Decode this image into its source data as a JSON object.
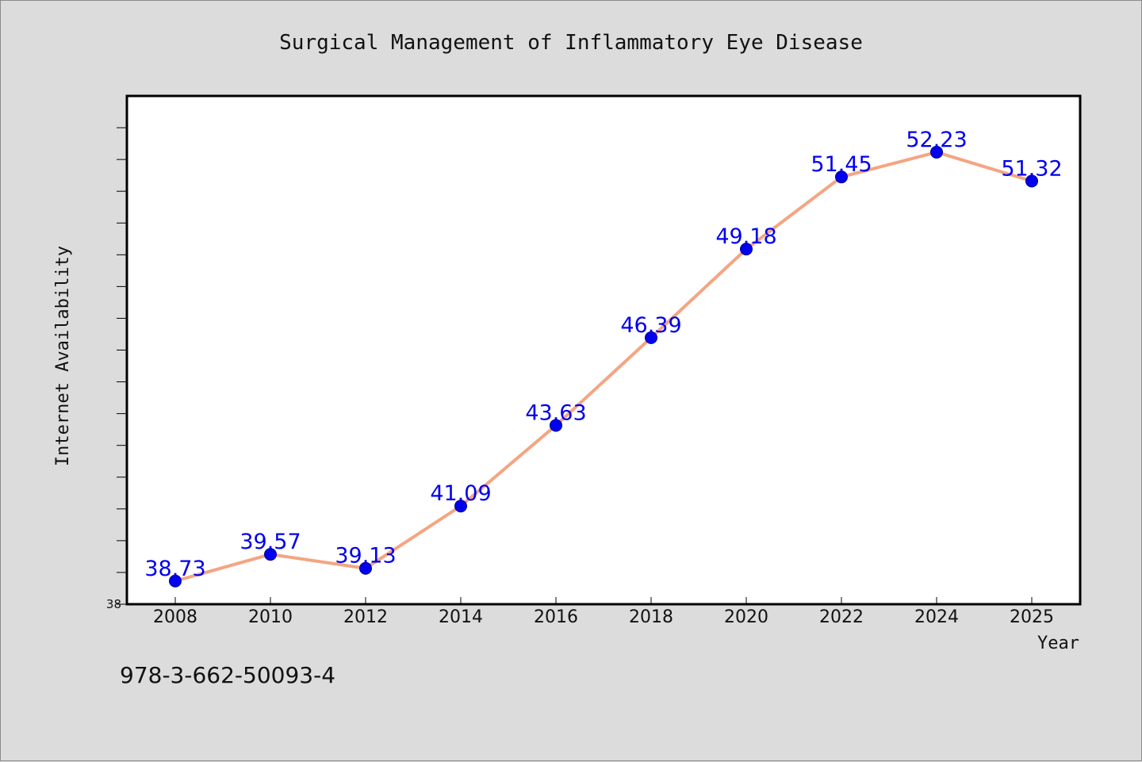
{
  "chart_data": {
    "type": "line",
    "title": "Surgical Management of Inflammatory Eye Disease",
    "xlabel": "Year",
    "ylabel": "Internet Availability",
    "categories": [
      "2008",
      "2010",
      "2012",
      "2014",
      "2016",
      "2018",
      "2020",
      "2022",
      "2024",
      "2025"
    ],
    "series": [
      {
        "values": [
          38.73,
          39.57,
          39.13,
          41.09,
          43.63,
          46.39,
          49.18,
          51.45,
          52.23,
          51.32
        ],
        "labels": [
          "38.73",
          "39.57",
          "39.13",
          "41.09",
          "43.63",
          "46.39",
          "49.18",
          "51.45",
          "52.23",
          "51.32"
        ]
      }
    ],
    "ylim": [
      38,
      54
    ],
    "yticks_labeled": [
      "38"
    ],
    "grid": false,
    "legend": "none",
    "colors": {
      "line": "#f4a582",
      "marker": "#0000ee",
      "label": "#0000ee",
      "background": "#dcdcdc",
      "plot_area": "#ffffff"
    }
  },
  "footer": {
    "isbn": "978-3-662-50093-4"
  }
}
